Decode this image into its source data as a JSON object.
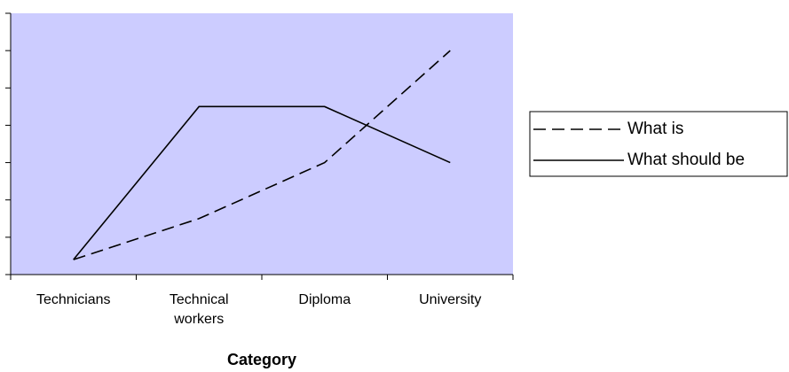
{
  "chart_data": {
    "type": "line",
    "x_label": "Category",
    "categories": [
      "Technicians",
      "Technical workers",
      "Diploma",
      "University"
    ],
    "series": [
      {
        "name": "What is",
        "color": "#000000",
        "dash": true,
        "values": [
          0.4,
          1.5,
          3,
          6
        ]
      },
      {
        "name": "What should be",
        "color": "#000000",
        "dash": false,
        "values": [
          0.4,
          4.5,
          4.5,
          3
        ]
      }
    ],
    "ylim": [
      0,
      7
    ],
    "yticks": [
      0,
      1,
      2,
      3,
      4,
      5,
      6,
      7
    ],
    "plot_background": "#ccccff",
    "legend": "right"
  }
}
